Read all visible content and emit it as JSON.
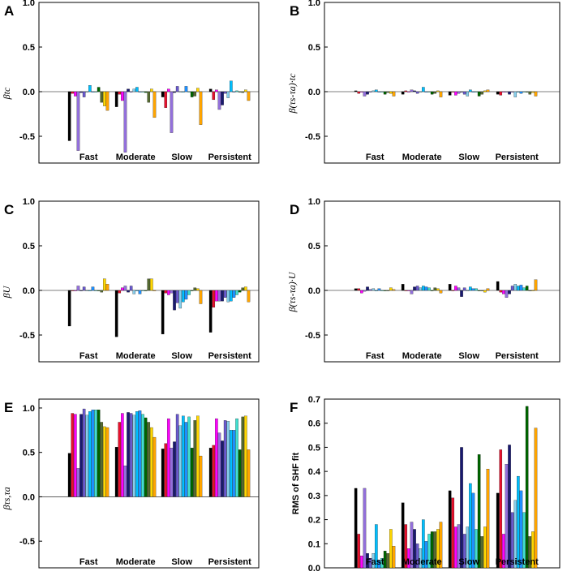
{
  "series_colors": [
    "#000000",
    "#e8112d",
    "#ff00ff",
    "#9370db",
    "#191970",
    "#6a5acd",
    "#87ceeb",
    "#00bfff",
    "#1e90ff",
    "#40e0d0",
    "#006400",
    "#556b2f",
    "#ffd700",
    "#ffa500"
  ],
  "chart_data": [
    {
      "id": "A",
      "type": "bar",
      "panel_label": "A",
      "ylabel": "β_{t_c}",
      "ylabel_text": "βtc",
      "ylim": [
        -0.8,
        1.0
      ],
      "yticks": [
        1.0,
        0.5,
        0.0,
        -0.5
      ],
      "ytick_labels": [
        "1.0",
        "0.5",
        "0.0",
        "-0.5"
      ],
      "categories": [
        "Fast",
        "Moderate",
        "Slow",
        "Persistent"
      ],
      "values": [
        [
          -0.55,
          -0.02,
          -0.05,
          -0.66,
          -0.01,
          -0.06,
          0.0,
          0.07,
          0.0,
          0.0,
          0.05,
          -0.12,
          -0.16,
          -0.21
        ],
        [
          -0.17,
          -0.03,
          -0.1,
          -0.68,
          0.03,
          0.0,
          0.03,
          0.05,
          0.0,
          0.0,
          -0.01,
          -0.12,
          0.03,
          -0.29
        ],
        [
          -0.06,
          -0.18,
          0.03,
          -0.46,
          -0.01,
          0.06,
          0.0,
          0.0,
          0.06,
          0.0,
          -0.06,
          -0.05,
          0.04,
          -0.37
        ],
        [
          0.03,
          -0.09,
          0.02,
          -0.2,
          -0.15,
          -0.02,
          -0.07,
          0.12,
          0.0,
          0.01,
          0.0,
          -0.01,
          0.02,
          -0.1
        ]
      ]
    },
    {
      "id": "B",
      "type": "bar",
      "panel_label": "B",
      "ylabel": "β_{(τ_s-τ_a)·t_c}",
      "ylabel_text": "β(τs-τa)·tc",
      "ylim": [
        -0.8,
        1.0
      ],
      "yticks": [
        1.0,
        0.5,
        0.0,
        -0.5
      ],
      "ytick_labels": [
        "1.0",
        "0.5",
        "0.0",
        "-0.5"
      ],
      "categories": [
        "Fast",
        "Moderate",
        "Slow",
        "Persistent"
      ],
      "values": [
        [
          0.01,
          -0.02,
          0.0,
          -0.05,
          -0.03,
          0.0,
          0.01,
          0.02,
          0.0,
          0.0,
          -0.03,
          -0.01,
          -0.02,
          -0.05
        ],
        [
          -0.03,
          0.01,
          0.0,
          0.02,
          0.01,
          -0.02,
          0.0,
          0.05,
          0.0,
          0.0,
          -0.03,
          -0.02,
          0.01,
          -0.06
        ],
        [
          -0.04,
          0.0,
          -0.04,
          -0.02,
          0.0,
          -0.03,
          -0.05,
          0.02,
          0.0,
          0.0,
          -0.05,
          -0.03,
          0.01,
          0.02
        ],
        [
          -0.03,
          -0.04,
          0.0,
          0.0,
          -0.03,
          0.0,
          -0.06,
          0.0,
          -0.02,
          0.0,
          0.0,
          -0.03,
          -0.01,
          -0.05
        ]
      ]
    },
    {
      "id": "C",
      "type": "bar",
      "panel_label": "C",
      "ylabel": "β_U",
      "ylabel_text": "βU",
      "ylim": [
        -0.8,
        1.0
      ],
      "yticks": [
        1.0,
        0.5,
        0.0,
        -0.5
      ],
      "ytick_labels": [
        "1.0",
        "0.5",
        "0.0",
        "-0.5"
      ],
      "categories": [
        "Fast",
        "Moderate",
        "Slow",
        "Persistent"
      ],
      "values": [
        [
          -0.4,
          0.0,
          0.0,
          0.05,
          0.0,
          0.04,
          0.0,
          0.0,
          0.04,
          0.0,
          0.0,
          -0.02,
          0.13,
          0.07
        ],
        [
          -0.52,
          -0.03,
          0.03,
          0.05,
          -0.02,
          0.05,
          -0.04,
          0.0,
          -0.04,
          0.0,
          0.0,
          0.13,
          0.13,
          0.0
        ],
        [
          -0.49,
          -0.03,
          -0.05,
          -0.03,
          -0.22,
          -0.14,
          -0.2,
          -0.13,
          -0.1,
          -0.05,
          0.0,
          0.03,
          0.02,
          -0.15
        ],
        [
          -0.47,
          -0.19,
          -0.12,
          -0.12,
          -0.12,
          -0.08,
          -0.13,
          -0.12,
          -0.08,
          -0.05,
          -0.02,
          0.03,
          0.04,
          -0.13
        ]
      ]
    },
    {
      "id": "D",
      "type": "bar",
      "panel_label": "D",
      "ylabel": "β_{(τ_s-τ_a)·U}",
      "ylabel_text": "β(τs-τa)·U",
      "ylim": [
        -0.8,
        1.0
      ],
      "yticks": [
        1.0,
        0.5,
        0.0,
        -0.5
      ],
      "ytick_labels": [
        "1.0",
        "0.5",
        "0.0",
        "-0.5"
      ],
      "categories": [
        "Fast",
        "Moderate",
        "Slow",
        "Persistent"
      ],
      "values": [
        [
          0.02,
          0.02,
          -0.03,
          -0.01,
          0.04,
          0.01,
          0.02,
          0.0,
          0.02,
          0.0,
          0.0,
          0.0,
          0.03,
          0.01
        ],
        [
          0.07,
          0.0,
          0.0,
          -0.04,
          0.04,
          0.05,
          0.03,
          0.05,
          0.04,
          0.03,
          0.0,
          0.03,
          0.02,
          -0.03
        ],
        [
          0.07,
          0.0,
          0.05,
          0.03,
          -0.07,
          0.03,
          0.0,
          0.04,
          0.02,
          0.02,
          0.0,
          0.0,
          -0.02,
          0.02
        ],
        [
          0.1,
          -0.02,
          -0.04,
          -0.08,
          -0.04,
          0.05,
          0.07,
          0.05,
          0.06,
          0.03,
          0.05,
          0.0,
          0.0,
          0.12
        ]
      ]
    },
    {
      "id": "E",
      "type": "bar",
      "panel_label": "E",
      "ylabel": "β_{τ_s,τ_a}",
      "ylabel_text": "βτs,τa",
      "ylim": [
        -0.8,
        1.1
      ],
      "yticks": [
        1.0,
        0.5,
        0.0,
        -0.5
      ],
      "ytick_labels": [
        "1.0",
        "0.5",
        "0.0",
        "-0.5"
      ],
      "categories": [
        "Fast",
        "Moderate",
        "Slow",
        "Persistent"
      ],
      "values": [
        [
          0.49,
          0.94,
          0.93,
          0.32,
          0.93,
          0.99,
          0.92,
          0.96,
          0.98,
          0.98,
          0.98,
          0.84,
          0.79,
          0.78
        ],
        [
          0.56,
          0.84,
          0.94,
          0.35,
          0.95,
          0.94,
          0.92,
          0.96,
          0.97,
          0.93,
          0.89,
          0.84,
          0.78,
          0.67
        ],
        [
          0.54,
          0.6,
          0.88,
          0.55,
          0.62,
          0.93,
          0.8,
          0.91,
          0.84,
          0.9,
          0.55,
          0.86,
          0.91,
          0.46
        ],
        [
          0.55,
          0.58,
          0.88,
          0.72,
          0.63,
          0.86,
          0.85,
          0.75,
          0.75,
          0.88,
          0.53,
          0.9,
          0.91,
          0.53
        ]
      ]
    },
    {
      "id": "F",
      "type": "bar",
      "panel_label": "F",
      "ylabel": "RMS of SHF fit",
      "ylabel_text": "RMS of SHF fit",
      "ylim": [
        0.0,
        0.7
      ],
      "yticks": [
        0.0,
        0.1,
        0.2,
        0.3,
        0.4,
        0.5,
        0.6,
        0.7
      ],
      "ytick_labels": [
        "0.0",
        "0.1",
        "0.2",
        "0.3",
        "0.4",
        "0.5",
        "0.6",
        "0.7"
      ],
      "categories": [
        "Fast",
        "Moderate",
        "Slow",
        "Persistent"
      ],
      "values": [
        [
          0.33,
          0.14,
          0.05,
          0.33,
          0.06,
          0.04,
          0.06,
          0.18,
          0.03,
          0.04,
          0.07,
          0.06,
          0.16,
          0.09
        ],
        [
          0.27,
          0.18,
          0.08,
          0.19,
          0.16,
          0.1,
          0.08,
          0.2,
          0.11,
          0.14,
          0.15,
          0.15,
          0.16,
          0.19
        ],
        [
          0.32,
          0.29,
          0.17,
          0.18,
          0.5,
          0.14,
          0.17,
          0.35,
          0.31,
          0.16,
          0.47,
          0.13,
          0.17,
          0.41
        ],
        [
          0.31,
          0.49,
          0.14,
          0.43,
          0.51,
          0.23,
          0.28,
          0.38,
          0.32,
          0.23,
          0.67,
          0.13,
          0.15,
          0.58
        ]
      ]
    }
  ]
}
